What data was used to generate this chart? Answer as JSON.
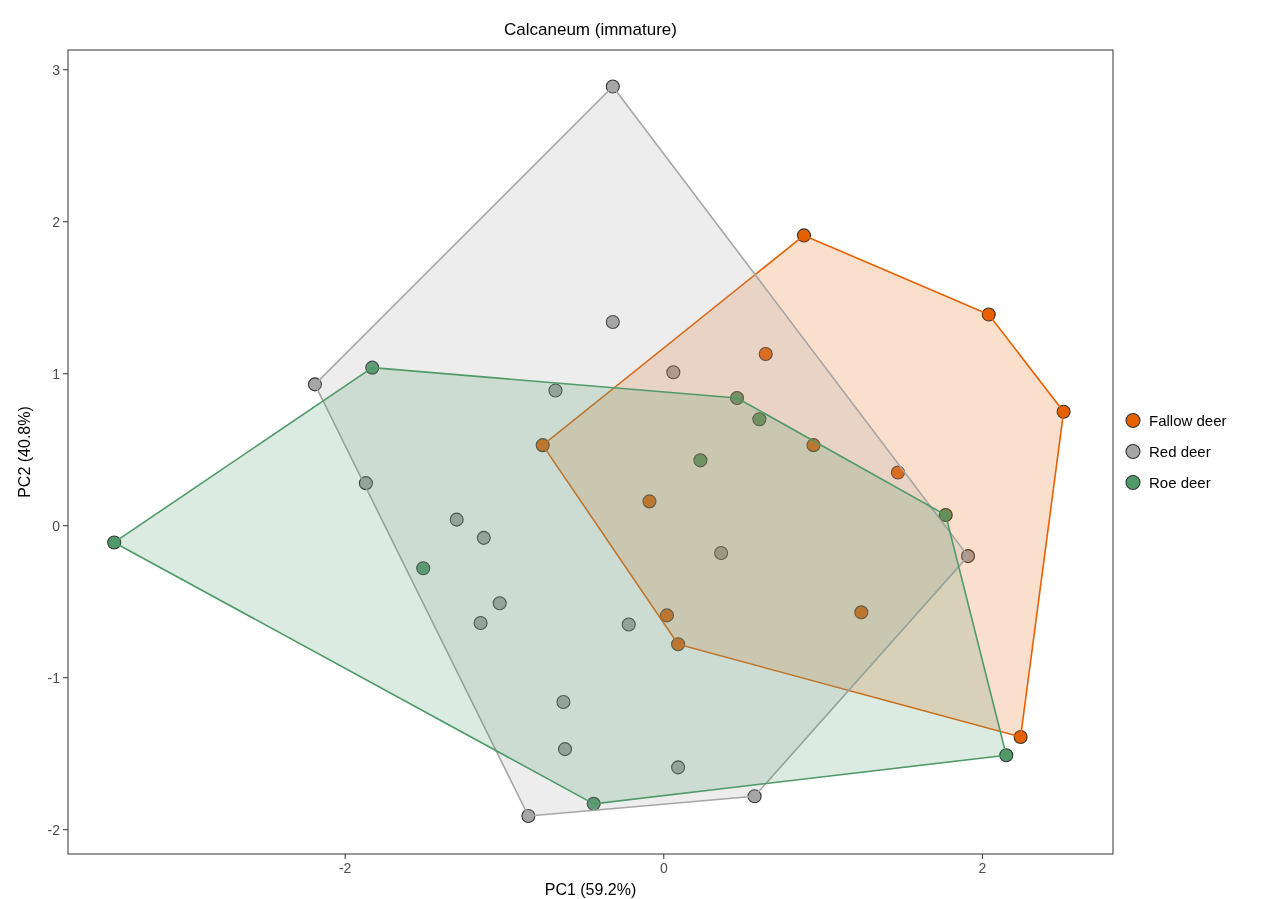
{
  "chart_data": {
    "type": "scatter",
    "title": "Calcaneum (immature)",
    "xlabel": "PC1 (59.2%)",
    "ylabel": "PC2 (40.8%)",
    "xlim": [
      -3.74,
      2.82
    ],
    "ylim": [
      -2.16,
      3.13
    ],
    "xticks": [
      -2,
      0,
      2
    ],
    "yticks": [
      -2,
      -1,
      0,
      1,
      2,
      3
    ],
    "grid": false,
    "legend": "right",
    "marker": "circle",
    "series": [
      {
        "name": "Fallow deer",
        "color": "#e66101",
        "x": [
          0.88,
          2.04,
          2.51,
          2.24,
          0.09,
          -0.76,
          0.64,
          0.94,
          1.47,
          -0.09,
          0.02,
          1.24
        ],
        "values": [
          1.91,
          1.39,
          0.75,
          -1.39,
          -0.78,
          0.53,
          1.13,
          0.53,
          0.35,
          0.16,
          -0.59,
          -0.57
        ]
      },
      {
        "name": "Red deer",
        "color": "#a6a6a6",
        "x": [
          -0.32,
          -0.32,
          -2.19,
          -0.68,
          -1.87,
          -1.3,
          -1.13,
          -1.03,
          -1.15,
          -0.22,
          -0.63,
          -0.62,
          0.09,
          0.57,
          -0.85,
          0.06,
          0.36,
          1.91
        ],
        "values": [
          2.89,
          1.34,
          0.93,
          0.89,
          0.28,
          0.04,
          -0.08,
          -0.51,
          -0.64,
          -0.65,
          -1.16,
          -1.47,
          -1.59,
          -1.78,
          -1.91,
          1.01,
          -0.18,
          -0.2
        ]
      },
      {
        "name": "Roe deer",
        "color": "#4f9a68",
        "x": [
          -3.45,
          -1.83,
          -1.51,
          -0.44,
          2.15,
          1.77,
          0.46,
          0.6,
          0.23
        ],
        "values": [
          -0.11,
          1.04,
          -0.28,
          -1.83,
          -1.51,
          0.07,
          0.84,
          0.7,
          0.43
        ]
      }
    ]
  }
}
